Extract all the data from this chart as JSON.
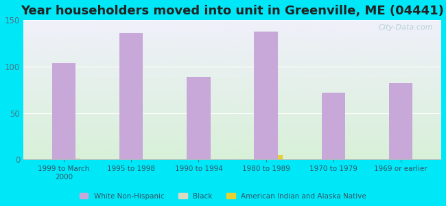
{
  "title": "Year householders moved into unit in Greenville, ME (04441)",
  "categories": [
    "1999 to March\n2000",
    "1995 to 1998",
    "1990 to 1994",
    "1980 to 1989",
    "1970 to 1979",
    "1969 or earlier"
  ],
  "white_values": [
    104,
    136,
    89,
    138,
    72,
    82
  ],
  "black_values": [
    2,
    0,
    0,
    0,
    0,
    0
  ],
  "native_values": [
    0,
    0,
    0,
    5,
    0,
    0
  ],
  "white_color": "#c8a8d8",
  "black_color": "#ddd8c0",
  "native_color": "#e8d030",
  "background_outer": "#00e8f8",
  "grad_top": "#f0f0fa",
  "grad_bottom": "#d8f0d8",
  "ylim": [
    0,
    150
  ],
  "yticks": [
    0,
    50,
    100,
    150
  ],
  "bar_width": 0.35,
  "title_fontsize": 13,
  "watermark": "City-Data.com",
  "tick_color": "#447788",
  "label_color": "#335566"
}
